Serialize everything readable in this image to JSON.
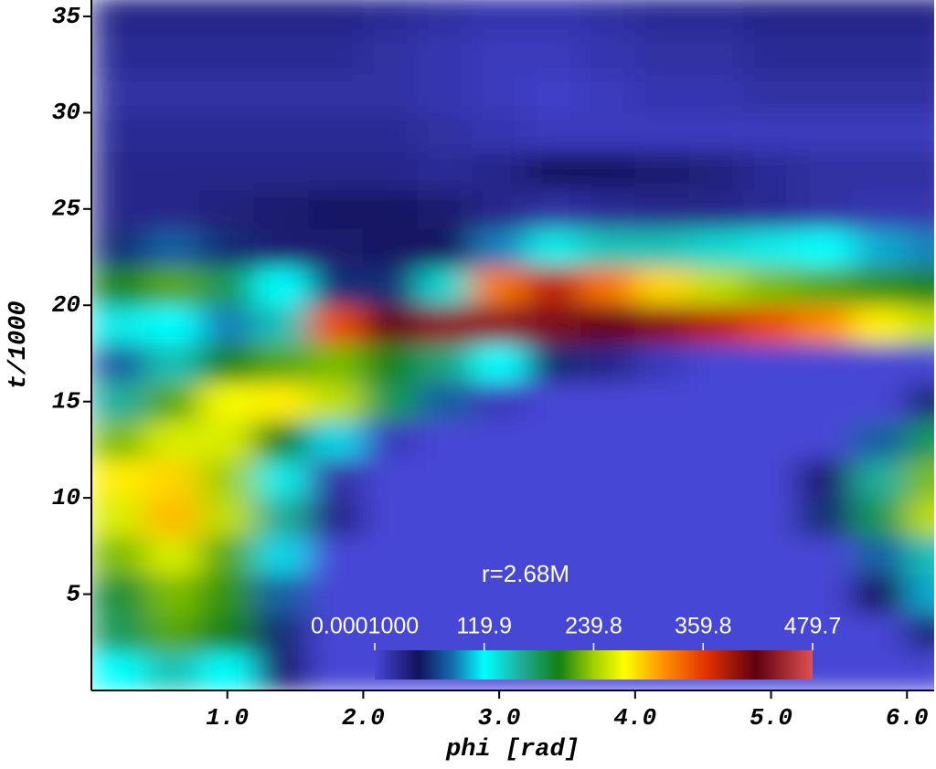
{
  "chart_data": {
    "type": "heatmap",
    "annotation": "r=2.68M",
    "x_label": "phi [rad]",
    "y_label": "t/1000",
    "xlim": [
      0,
      6.2
    ],
    "ylim": [
      0,
      35.85
    ],
    "xticks": [
      {
        "value": 1,
        "label": "1.0"
      },
      {
        "value": 2,
        "label": "2.0"
      },
      {
        "value": 3,
        "label": "3.0"
      },
      {
        "value": 4,
        "label": "4.0"
      },
      {
        "value": 5,
        "label": "5.0"
      },
      {
        "value": 6,
        "label": "6.0"
      }
    ],
    "yticks": [
      5,
      10,
      15,
      20,
      25,
      30,
      35
    ],
    "x": [
      0.2,
      0.6,
      1.0,
      1.4,
      1.8,
      2.2,
      2.6,
      3.0,
      3.4,
      3.8,
      4.2,
      4.6,
      5.0,
      5.4,
      5.8,
      6.2
    ],
    "y": [
      1,
      3,
      5,
      7,
      9,
      11,
      13,
      15,
      17,
      19,
      21,
      23,
      25,
      27,
      29,
      31,
      33,
      35
    ],
    "values": [
      [
        120,
        150,
        120,
        40,
        0,
        0,
        0,
        0,
        0,
        0,
        0,
        0,
        0,
        0,
        0,
        0
      ],
      [
        180,
        220,
        200,
        60,
        0,
        0,
        0,
        0,
        0,
        0,
        0,
        0,
        0,
        0,
        0,
        60
      ],
      [
        190,
        230,
        210,
        80,
        0,
        0,
        0,
        0,
        0,
        0,
        0,
        0,
        0,
        0,
        50,
        100
      ],
      [
        230,
        260,
        220,
        110,
        0,
        0,
        0,
        0,
        0,
        0,
        0,
        0,
        0,
        0,
        80,
        150
      ],
      [
        260,
        300,
        250,
        160,
        30,
        0,
        0,
        0,
        0,
        0,
        0,
        0,
        0,
        60,
        180,
        250
      ],
      [
        280,
        290,
        240,
        130,
        20,
        0,
        0,
        0,
        0,
        0,
        0,
        0,
        0,
        40,
        160,
        230
      ],
      [
        230,
        260,
        260,
        200,
        110,
        10,
        0,
        0,
        0,
        0,
        0,
        0,
        0,
        0,
        80,
        180
      ],
      [
        160,
        220,
        270,
        280,
        250,
        180,
        80,
        10,
        0,
        0,
        0,
        0,
        0,
        0,
        0,
        60
      ],
      [
        80,
        150,
        200,
        220,
        230,
        200,
        170,
        120,
        60,
        30,
        10,
        0,
        0,
        0,
        0,
        0
      ],
      [
        130,
        120,
        90,
        150,
        350,
        420,
        440,
        440,
        430,
        420,
        400,
        380,
        350,
        320,
        280,
        250
      ],
      [
        200,
        220,
        180,
        120,
        60,
        60,
        140,
        330,
        380,
        330,
        290,
        250,
        230,
        220,
        210,
        200
      ],
      [
        60,
        80,
        60,
        40,
        40,
        45,
        50,
        90,
        130,
        150,
        150,
        140,
        130,
        120,
        100,
        90
      ],
      [
        30,
        30,
        35,
        40,
        45,
        45,
        40,
        30,
        20,
        25,
        30,
        30,
        25,
        20,
        15,
        15
      ],
      [
        30,
        30,
        30,
        30,
        30,
        30,
        25,
        30,
        45,
        45,
        40,
        35,
        25,
        20,
        20,
        20
      ],
      [
        25,
        25,
        25,
        25,
        25,
        25,
        20,
        15,
        10,
        10,
        10,
        10,
        10,
        10,
        10,
        10
      ],
      [
        20,
        20,
        20,
        20,
        20,
        20,
        15,
        10,
        5,
        10,
        15,
        15,
        20,
        20,
        20,
        20
      ],
      [
        25,
        25,
        25,
        25,
        25,
        20,
        15,
        10,
        10,
        15,
        20,
        20,
        25,
        25,
        25,
        25
      ],
      [
        30,
        30,
        30,
        30,
        30,
        25,
        20,
        15,
        15,
        20,
        25,
        25,
        30,
        30,
        30,
        30
      ]
    ],
    "colorbar": {
      "lim": [
        0.0001,
        479.7
      ],
      "ticks": [
        {
          "value": 0.0001,
          "label": "0.0001000"
        },
        119.9,
        239.8,
        359.8,
        479.7
      ]
    },
    "colormap": [
      [
        0,
        "#4646d6"
      ],
      [
        0.1,
        "#12125c"
      ],
      [
        0.18,
        "#1470b0"
      ],
      [
        0.25,
        "#00ffff"
      ],
      [
        0.33,
        "#20b0a0"
      ],
      [
        0.42,
        "#128012"
      ],
      [
        0.5,
        "#a0d000"
      ],
      [
        0.57,
        "#ffff00"
      ],
      [
        0.66,
        "#ff9000"
      ],
      [
        0.76,
        "#e03000"
      ],
      [
        0.87,
        "#600010"
      ],
      [
        1,
        "#e05050"
      ]
    ]
  }
}
